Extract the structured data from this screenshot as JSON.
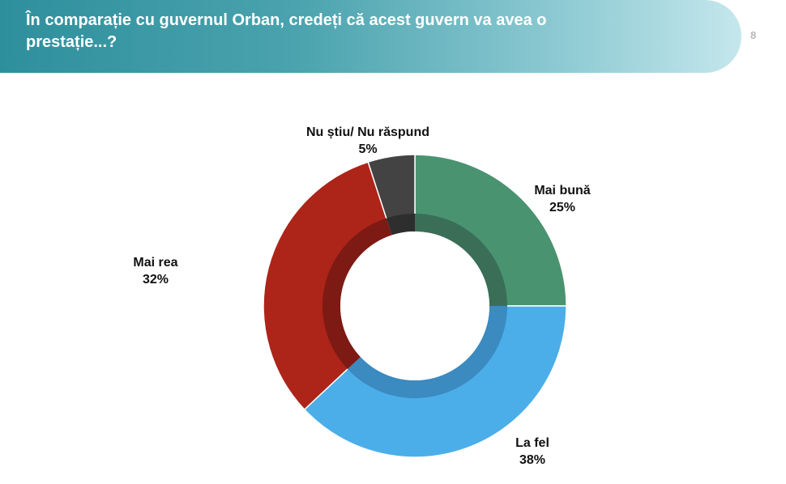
{
  "header": {
    "title": "În comparație cu guvernul Orban, credeți că acest guvern va avea o prestație...?",
    "page_number": "8"
  },
  "chart_data": {
    "type": "pie",
    "donut": true,
    "title": "În comparație cu guvernul Orban, credeți că acest guvern va avea o prestație...?",
    "categories": [
      "Mai bună",
      "La fel",
      "Mai rea",
      "Nu știu/ Nu răspund"
    ],
    "values": [
      25,
      38,
      32,
      5
    ],
    "value_labels": [
      "25%",
      "38%",
      "32%",
      "5%"
    ],
    "colors": [
      "#4a9370",
      "#4baee9",
      "#ad2419",
      "#434343"
    ],
    "inner_shade_colors": [
      "#3a6e57",
      "#3b8ac0",
      "#7d1a13",
      "#2e2e2e"
    ],
    "legend": "none",
    "start": "top, clockwise"
  }
}
